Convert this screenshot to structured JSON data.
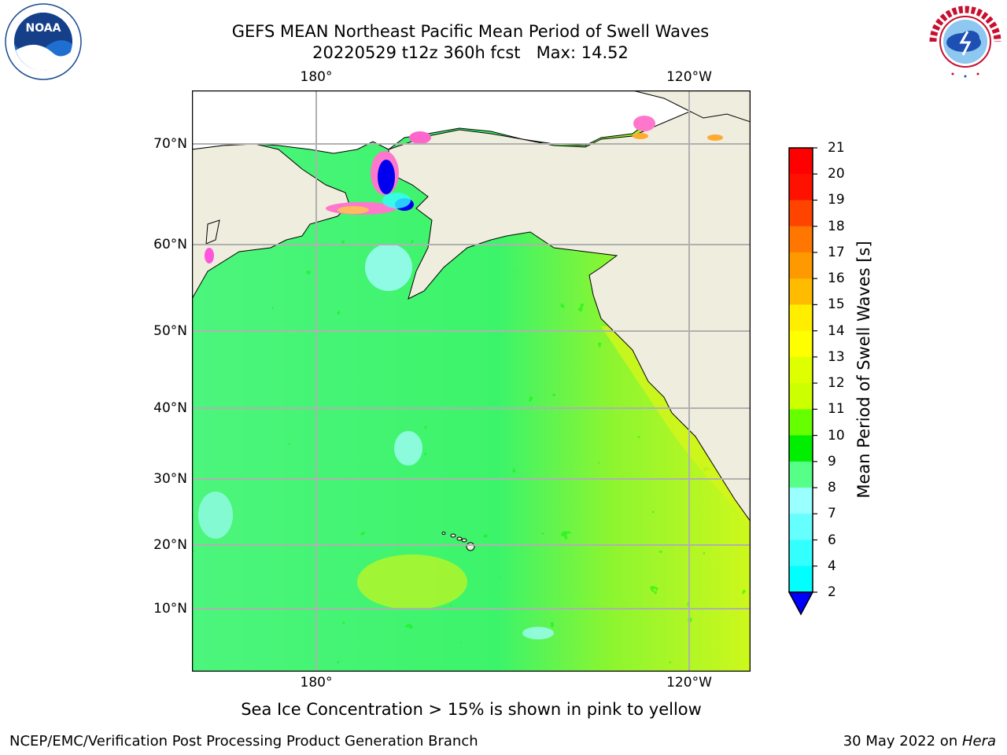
{
  "title": {
    "line1": "GEFS MEAN Northeast Pacific Mean Period of Swell Waves",
    "line2": "20220529 t12z 360h fcst   Max: 14.52"
  },
  "map": {
    "lon_labels_top": [
      "180°",
      "120°W"
    ],
    "lon_labels_bottom": [
      "180°",
      "120°W"
    ],
    "lat_labels": [
      "70°N",
      "60°N",
      "50°N",
      "40°N",
      "30°N",
      "20°N",
      "10°N"
    ],
    "land_color": "#efedde",
    "grid_color": "#b0b0b0"
  },
  "colorbar": {
    "label": "Mean Period of Swell Waves [s]",
    "ticks": [
      "21",
      "20",
      "19",
      "18",
      "17",
      "16",
      "15",
      "14",
      "13",
      "12",
      "11",
      "10",
      "9",
      "8",
      "7",
      "6",
      "4",
      "2"
    ],
    "colors": [
      "#0000ff",
      "#0066ff",
      "#00ffff",
      "#33ffff",
      "#66ffff",
      "#99ffff",
      "#55ff88",
      "#00ee00",
      "#66ff00",
      "#ccff00",
      "#ddff00",
      "#ffff00",
      "#ffee00",
      "#ffbb00",
      "#ff9900",
      "#ff7700",
      "#ff4400",
      "#ff1100",
      "#ff0000"
    ]
  },
  "note": "Sea Ice Concentration > 15% is shown in pink to yellow",
  "footer": {
    "left": "NCEP/EMC/Verification Post Processing Product Generation Branch",
    "right_date": "30 May 2022 on ",
    "right_host": "Hera"
  },
  "logos": {
    "left": "NOAA",
    "right_text": "NATIONAL WEATHER SERVICE"
  },
  "icons": {
    "left_logo": "noaa-logo-icon",
    "right_logo": "nws-logo-icon"
  }
}
